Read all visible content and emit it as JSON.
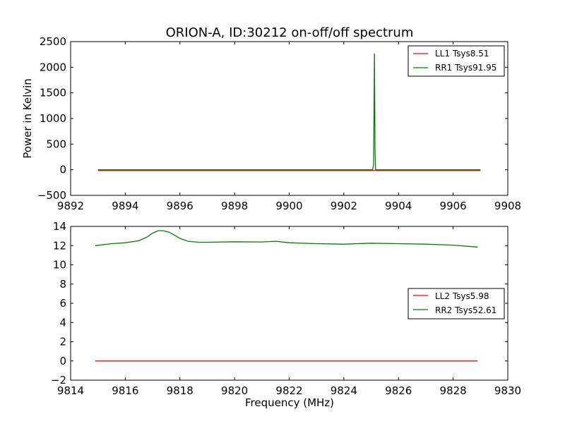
{
  "colors": {
    "red": "#ff0000",
    "green": "#008000",
    "frame": "#000000",
    "background": "#ffffff"
  },
  "chart_data": [
    {
      "type": "line",
      "title": "ORION-A, ID:30212 on-off/off spectrum",
      "xlabel": "",
      "ylabel": "Power in Kelvin",
      "xlim": [
        9892,
        9908
      ],
      "ylim": [
        -500,
        2500
      ],
      "xticks": [
        9892,
        9894,
        9896,
        9898,
        9900,
        9902,
        9904,
        9906,
        9908
      ],
      "yticks": [
        -500,
        0,
        500,
        1000,
        1500,
        2000,
        2500
      ],
      "grid": false,
      "legend_position": "top-right",
      "series": [
        {
          "name": "LL1 Tsys8.51",
          "color": "#ff0000",
          "x": [
            9893.0,
            9903.08,
            9903.13,
            9903.2,
            9907.0
          ],
          "y": [
            -15,
            -15,
            -10,
            -15,
            -15
          ]
        },
        {
          "name": "RR1 Tsys91.95",
          "color": "#008000",
          "x": [
            9893.0,
            9903.05,
            9903.09,
            9903.12,
            9903.14,
            9903.16,
            9903.2,
            9907.0
          ],
          "y": [
            0,
            0,
            100,
            2270,
            400,
            0,
            0,
            0
          ]
        }
      ]
    },
    {
      "type": "line",
      "title": "",
      "xlabel": "Frequency (MHz)",
      "ylabel": "",
      "xlim": [
        9814,
        9830
      ],
      "ylim": [
        -2,
        14
      ],
      "xticks": [
        9814,
        9816,
        9818,
        9820,
        9822,
        9824,
        9826,
        9828,
        9830
      ],
      "yticks": [
        -2,
        0,
        2,
        4,
        6,
        8,
        10,
        12,
        14
      ],
      "grid": false,
      "legend_position": "center-right",
      "series": [
        {
          "name": "LL2 Tsys5.98",
          "color": "#ff0000",
          "x": [
            9814.9,
            9828.9
          ],
          "y": [
            0.0,
            0.0
          ]
        },
        {
          "name": "RR2 Tsys52.61",
          "color": "#008000",
          "x": [
            9814.9,
            9815.5,
            9816.0,
            9816.5,
            9816.8,
            9817.0,
            9817.2,
            9817.4,
            9817.6,
            9817.8,
            9818.0,
            9818.3,
            9818.7,
            9819.0,
            9820.0,
            9821.0,
            9821.5,
            9822.0,
            9823.0,
            9824.0,
            9825.0,
            9826.0,
            9827.0,
            9828.0,
            9828.9
          ],
          "y": [
            12.0,
            12.2,
            12.3,
            12.5,
            12.9,
            13.3,
            13.55,
            13.55,
            13.4,
            13.1,
            12.75,
            12.45,
            12.35,
            12.35,
            12.4,
            12.38,
            12.45,
            12.3,
            12.2,
            12.15,
            12.25,
            12.2,
            12.15,
            12.05,
            11.85
          ]
        }
      ]
    }
  ]
}
